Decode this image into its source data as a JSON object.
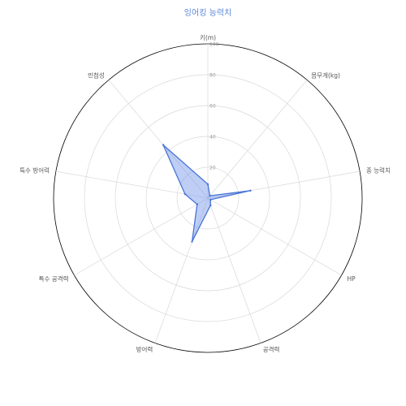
{
  "chart_data": {
    "type": "radar",
    "title": "잉어킹 능력치",
    "axes": [
      "키(m)",
      "몸무게(kg)",
      "종 능력치",
      "HP",
      "공격력",
      "방어력",
      "특수 공격력",
      "특수 방어력",
      "민첩성"
    ],
    "series": [
      {
        "name": "",
        "values": [
          9,
          2,
          28,
          2,
          5,
          30,
          8,
          15,
          45
        ]
      }
    ],
    "r_range": [
      0,
      100
    ],
    "r_ticks": [
      20,
      40,
      60,
      80,
      100
    ],
    "grid": true,
    "legend": "none",
    "colors": {
      "fill": "#6f93e6",
      "stroke": "#4a74d9",
      "grid": "#d8d8d8",
      "outer": "#000000",
      "title": "#5b87d8"
    }
  }
}
